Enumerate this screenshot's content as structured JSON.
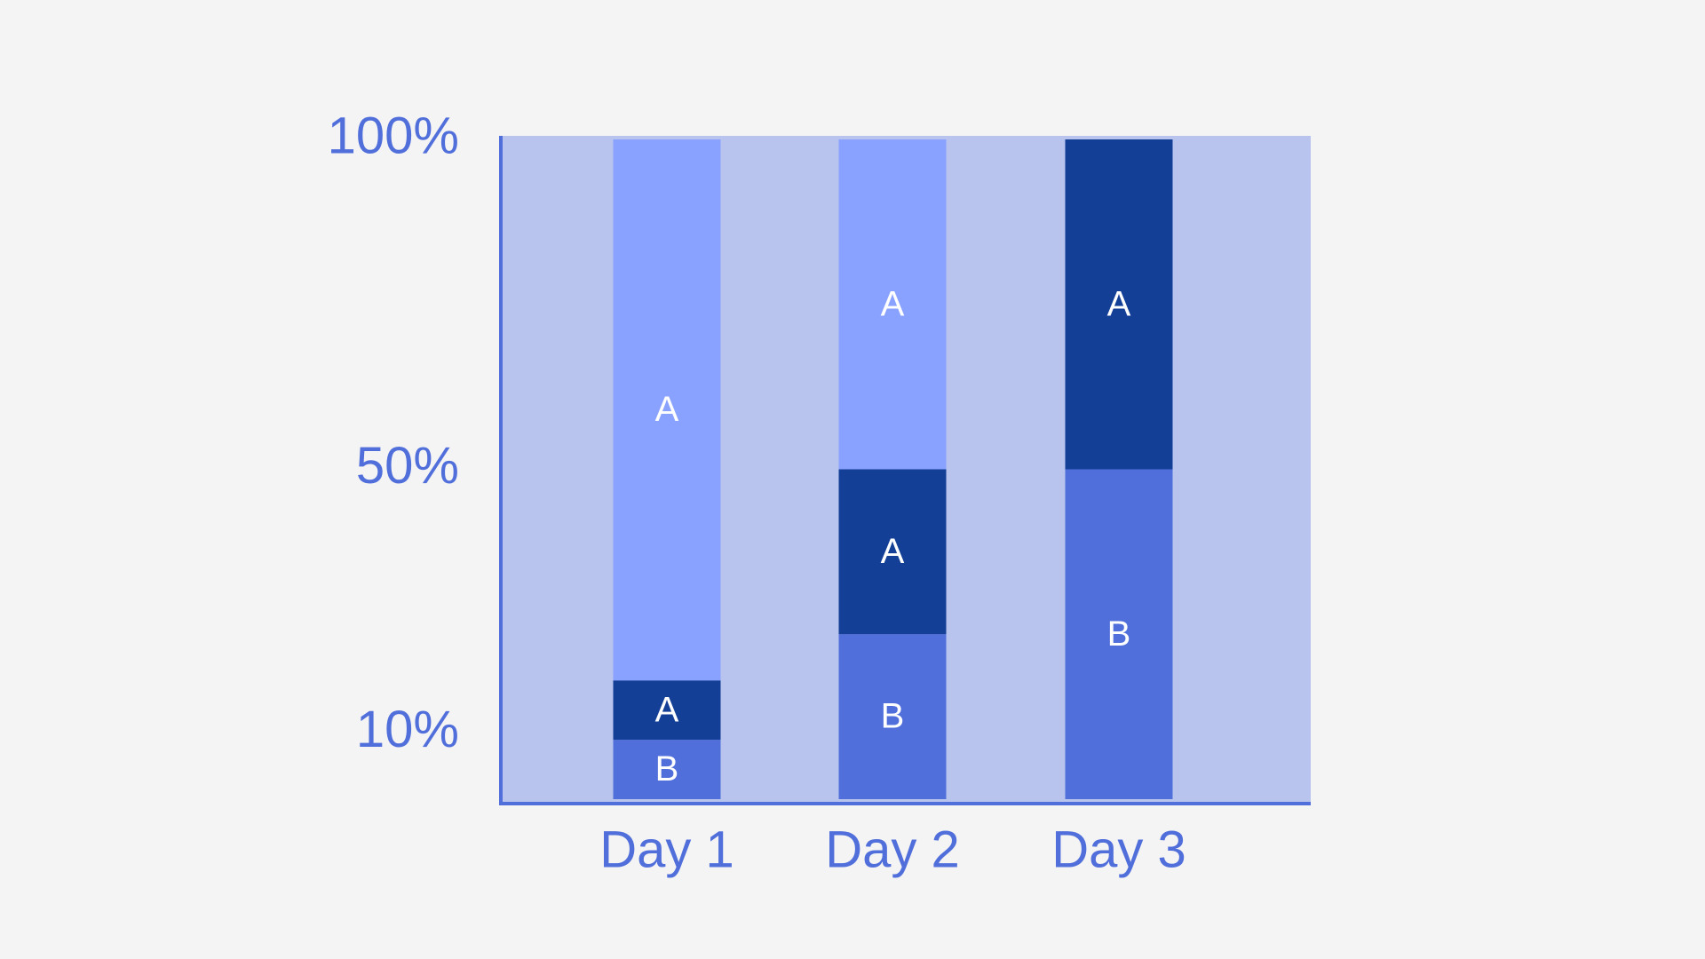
{
  "chart_data": {
    "type": "stacked-bar",
    "categories": [
      "Day 1",
      "Day 2",
      "Day 3"
    ],
    "series": [
      {
        "name": "B",
        "color": "#516fdb",
        "values": [
          9,
          25,
          50
        ]
      },
      {
        "name": "A",
        "color": "#143f96",
        "values": [
          9,
          25,
          50
        ]
      },
      {
        "name": "A",
        "color": "#8aa2ff",
        "values": [
          82,
          50,
          null
        ]
      }
    ],
    "ylim": [
      0,
      100
    ],
    "yticks": [
      {
        "value": 10,
        "label": "10%"
      },
      {
        "value": 50,
        "label": "50%"
      },
      {
        "value": 100,
        "label": "100%"
      }
    ],
    "grid": false
  }
}
